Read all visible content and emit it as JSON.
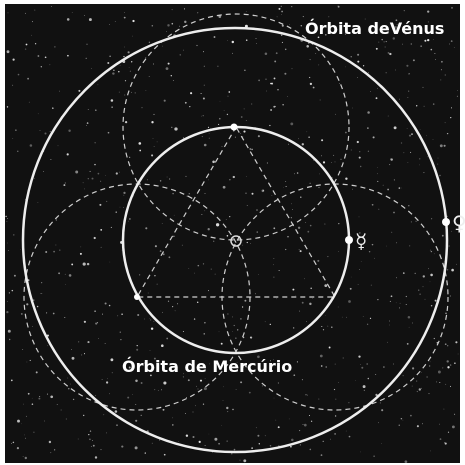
{
  "labels": {
    "venus_orbit": "Órbita deVénus",
    "mercury_orbit": "Órbita de Mercúrio",
    "mercury_symbol": "☿",
    "venus_symbol": "♀"
  }
}
